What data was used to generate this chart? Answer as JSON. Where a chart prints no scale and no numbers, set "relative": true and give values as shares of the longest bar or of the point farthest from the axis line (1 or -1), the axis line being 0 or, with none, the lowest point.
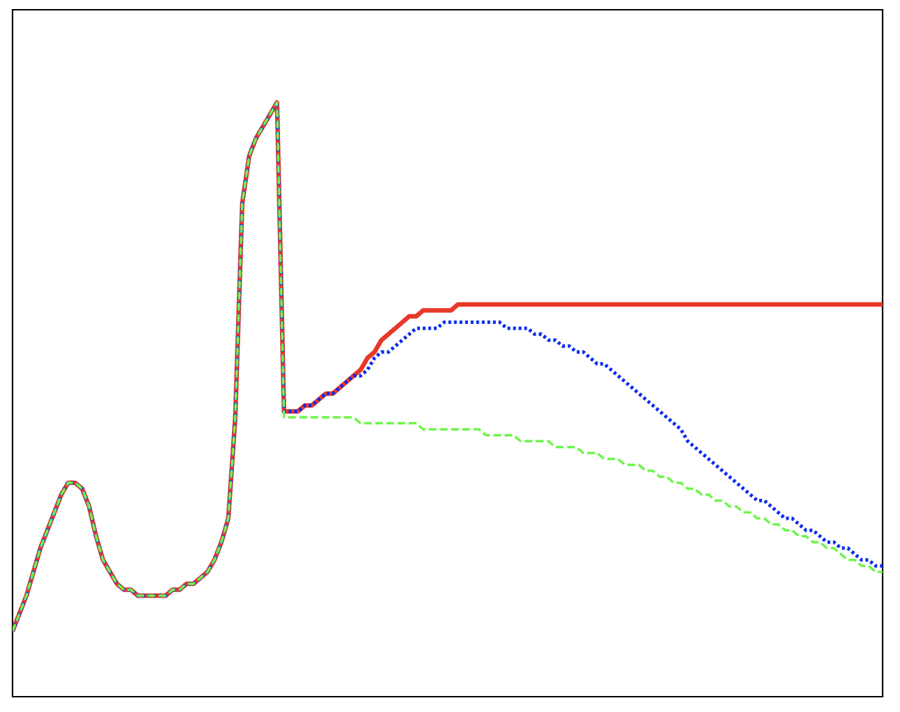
{
  "chart_data": {
    "type": "line",
    "relative": true,
    "categories": [
      null,
      null,
      null,
      null,
      null,
      null,
      null,
      null,
      null,
      null,
      null,
      null,
      null,
      null,
      null,
      null,
      null,
      null,
      null,
      null,
      null,
      null,
      null,
      null,
      null,
      null,
      null,
      null,
      null,
      null,
      null,
      null,
      null,
      null,
      null,
      null,
      null,
      null,
      null,
      null,
      null,
      null,
      null,
      null,
      null,
      null,
      null,
      null,
      null,
      null,
      null,
      null,
      null,
      null,
      null,
      null,
      null,
      null,
      null,
      null,
      null,
      null,
      null,
      null,
      null,
      null,
      null,
      null,
      null,
      null,
      null,
      null,
      null,
      null,
      null,
      null,
      null,
      null,
      null,
      null,
      null,
      null,
      null,
      null,
      null,
      null,
      null,
      null,
      null,
      null,
      null,
      null,
      null,
      null,
      null,
      null,
      null,
      null,
      null,
      null,
      null,
      null,
      null,
      null,
      null,
      null,
      null,
      null,
      null,
      null,
      null,
      null,
      null,
      null,
      null,
      null,
      null,
      null,
      null,
      null,
      null,
      null,
      null,
      null,
      null,
      null
    ],
    "series": [
      {
        "color": "#e8382a",
        "line_style": "solid",
        "values": [
          0.11,
          0.14,
          0.17,
          0.21,
          0.25,
          0.28,
          0.31,
          0.34,
          0.36,
          0.36,
          0.35,
          0.32,
          0.27,
          0.23,
          0.21,
          0.19,
          0.18,
          0.18,
          0.17,
          0.17,
          0.17,
          0.17,
          0.17,
          0.18,
          0.18,
          0.19,
          0.19,
          0.2,
          0.21,
          0.23,
          0.26,
          0.3,
          0.47,
          0.83,
          0.91,
          0.94,
          0.96,
          0.98,
          1,
          0.48,
          0.48,
          0.48,
          0.49,
          0.49,
          0.5,
          0.51,
          0.51,
          0.52,
          0.53,
          0.54,
          0.55,
          0.57,
          0.58,
          0.6,
          0.61,
          0.62,
          0.63,
          0.64,
          0.64,
          0.65,
          0.65,
          0.65,
          0.65,
          0.65,
          0.66,
          0.66,
          0.66,
          0.66,
          0.66,
          0.66,
          0.66,
          0.66,
          0.66,
          0.66,
          0.66,
          0.66,
          0.66,
          0.66,
          0.66,
          0.66,
          0.66,
          0.66,
          0.66,
          0.66,
          0.66,
          0.66,
          0.66,
          0.66,
          0.66,
          0.66,
          0.66,
          0.66,
          0.66,
          0.66,
          0.66,
          0.66,
          0.66,
          0.66,
          0.66,
          0.66,
          0.66,
          0.66,
          0.66,
          0.66,
          0.66,
          0.66,
          0.66,
          0.66,
          0.66,
          0.66,
          0.66,
          0.66,
          0.66,
          0.66,
          0.66,
          0.66,
          0.66,
          0.66,
          0.66,
          0.66,
          0.66,
          0.66,
          0.66,
          0.66,
          0.66,
          0.66
        ]
      },
      {
        "color": "#0a2cf0",
        "line_style": "dotted",
        "values": [
          0.11,
          0.14,
          0.17,
          0.21,
          0.25,
          0.28,
          0.31,
          0.34,
          0.36,
          0.36,
          0.35,
          0.32,
          0.27,
          0.23,
          0.21,
          0.19,
          0.18,
          0.18,
          0.17,
          0.17,
          0.17,
          0.17,
          0.17,
          0.18,
          0.18,
          0.19,
          0.19,
          0.2,
          0.21,
          0.23,
          0.26,
          0.3,
          0.47,
          0.83,
          0.91,
          0.94,
          0.96,
          0.98,
          1,
          0.48,
          0.48,
          0.48,
          0.49,
          0.49,
          0.5,
          0.51,
          0.51,
          0.52,
          0.53,
          0.54,
          0.54,
          0.55,
          0.57,
          0.58,
          0.58,
          0.59,
          0.6,
          0.61,
          0.62,
          0.62,
          0.62,
          0.62,
          0.63,
          0.63,
          0.63,
          0.63,
          0.63,
          0.63,
          0.63,
          0.63,
          0.63,
          0.62,
          0.62,
          0.62,
          0.62,
          0.61,
          0.61,
          0.6,
          0.6,
          0.59,
          0.59,
          0.58,
          0.58,
          0.57,
          0.56,
          0.56,
          0.55,
          0.54,
          0.53,
          0.52,
          0.51,
          0.5,
          0.49,
          0.48,
          0.47,
          0.46,
          0.45,
          0.43,
          0.42,
          0.41,
          0.4,
          0.39,
          0.38,
          0.37,
          0.36,
          0.35,
          0.34,
          0.33,
          0.33,
          0.32,
          0.31,
          0.3,
          0.3,
          0.29,
          0.28,
          0.28,
          0.27,
          0.26,
          0.26,
          0.25,
          0.25,
          0.24,
          0.23,
          0.23,
          0.22,
          0.22
        ]
      },
      {
        "color": "#6ef54a",
        "line_style": "dashed",
        "values": [
          0.11,
          0.14,
          0.17,
          0.21,
          0.25,
          0.28,
          0.31,
          0.34,
          0.36,
          0.36,
          0.35,
          0.32,
          0.27,
          0.23,
          0.21,
          0.19,
          0.18,
          0.18,
          0.17,
          0.17,
          0.17,
          0.17,
          0.17,
          0.18,
          0.18,
          0.19,
          0.19,
          0.2,
          0.21,
          0.23,
          0.26,
          0.3,
          0.47,
          0.83,
          0.91,
          0.94,
          0.96,
          0.98,
          1,
          0.47,
          0.47,
          0.47,
          0.47,
          0.47,
          0.47,
          0.47,
          0.47,
          0.47,
          0.47,
          0.47,
          0.46,
          0.46,
          0.46,
          0.46,
          0.46,
          0.46,
          0.46,
          0.46,
          0.46,
          0.45,
          0.45,
          0.45,
          0.45,
          0.45,
          0.45,
          0.45,
          0.45,
          0.45,
          0.44,
          0.44,
          0.44,
          0.44,
          0.44,
          0.43,
          0.43,
          0.43,
          0.43,
          0.43,
          0.42,
          0.42,
          0.42,
          0.42,
          0.41,
          0.41,
          0.41,
          0.4,
          0.4,
          0.4,
          0.39,
          0.39,
          0.39,
          0.38,
          0.38,
          0.37,
          0.37,
          0.36,
          0.36,
          0.35,
          0.35,
          0.34,
          0.34,
          0.33,
          0.33,
          0.32,
          0.32,
          0.31,
          0.31,
          0.3,
          0.3,
          0.29,
          0.29,
          0.28,
          0.28,
          0.27,
          0.27,
          0.26,
          0.26,
          0.25,
          0.25,
          0.24,
          0.23,
          0.23,
          0.22,
          0.22,
          0.21,
          0.21
        ]
      }
    ]
  }
}
